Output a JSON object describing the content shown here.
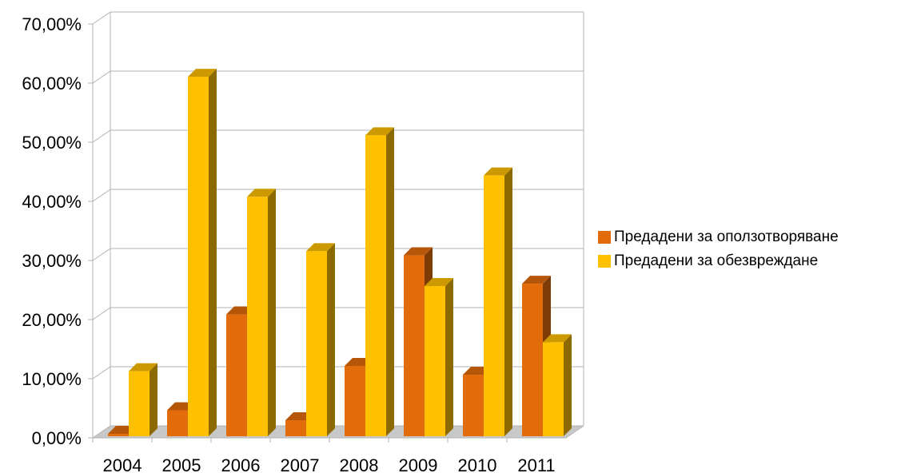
{
  "chart_data": {
    "type": "bar",
    "categories": [
      "2004",
      "2005",
      "2006",
      "2007",
      "2008",
      "2009",
      "2010",
      "2011"
    ],
    "series": [
      {
        "name": "Предадени за оползотворяване",
        "color": "#e36c0a",
        "values": [
          0.4,
          4.4,
          20.6,
          2.7,
          11.9,
          30.6,
          10.4,
          25.8
        ]
      },
      {
        "name": "Предадени за обезвреждане",
        "color": "#ffc000",
        "values": [
          11.0,
          60.8,
          40.5,
          31.3,
          50.9,
          25.4,
          44.1,
          15.9
        ]
      }
    ],
    "y_ticks": [
      "0,00%",
      "10,00%",
      "20,00%",
      "30,00%",
      "40,00%",
      "50,00%",
      "60,00%",
      "70,00%"
    ],
    "ylim": [
      0,
      70
    ],
    "y_unit": "%",
    "grid": true,
    "legend_position": "right",
    "style": "3d-columns"
  }
}
